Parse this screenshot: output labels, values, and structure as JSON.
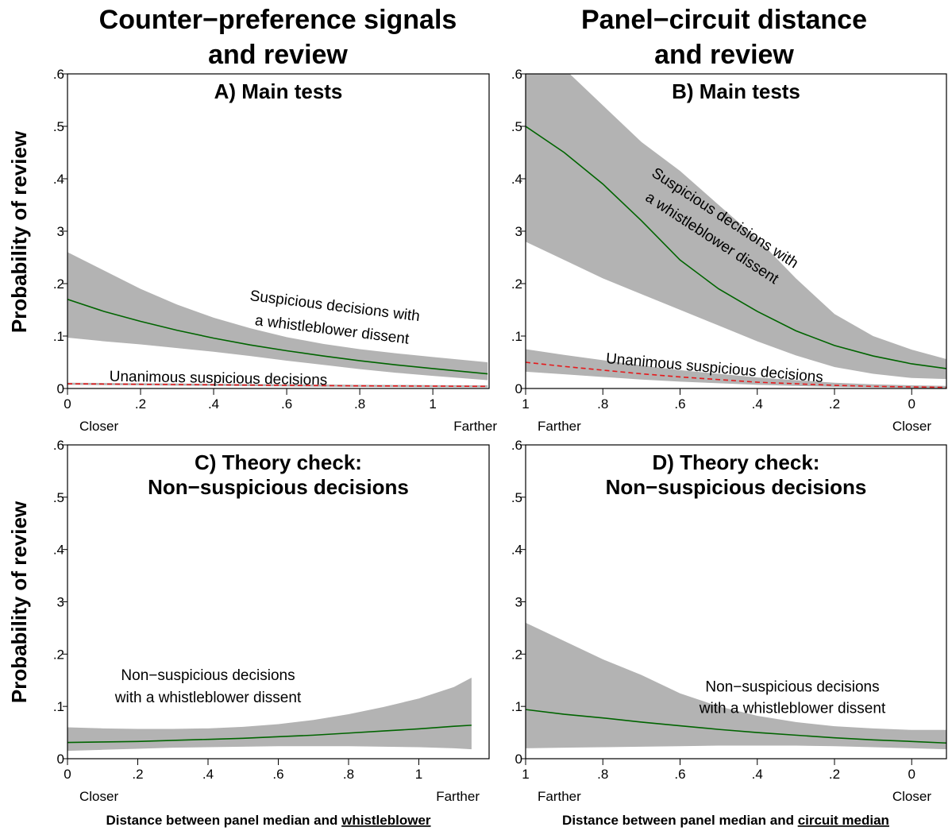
{
  "header": {
    "column_titles": [
      [
        "Counter−preference signals",
        "and review"
      ],
      [
        "Panel−circuit distance",
        "and review"
      ]
    ],
    "ylabel": "Probability of review",
    "xlabels": [
      {
        "prefix": "Distance between panel median and ",
        "underlined": "whistleblower"
      },
      {
        "prefix": "Distance between panel median and ",
        "underlined": "circuit median"
      }
    ]
  },
  "chart_data": [
    {
      "type": "line",
      "title": [
        "A) Main tests"
      ],
      "xlim": [
        0,
        1.154
      ],
      "xticks": [
        0,
        {
          "value": 0.2,
          "label": ".2"
        },
        {
          "value": 0.4,
          "label": ".4"
        },
        {
          "value": 0.6,
          "label": ".6"
        },
        {
          "value": 0.8,
          "label": ".8"
        },
        1
      ],
      "x_end_labels": [
        "Closer",
        "Farther"
      ],
      "ylim": [
        0,
        0.6
      ],
      "yticks": [
        0,
        {
          "value": 0.1,
          "label": ".1"
        },
        {
          "value": 0.2,
          "label": ".2"
        },
        {
          "value": 0.3,
          "label": "3"
        },
        {
          "value": 0.4,
          "label": ".4"
        },
        {
          "value": 0.5,
          "label": ".5"
        },
        {
          "value": 0.6,
          "label": ".6"
        }
      ],
      "band_color": "#b3b3b3",
      "x": [
        0,
        0.1,
        0.2,
        0.3,
        0.4,
        0.5,
        0.6,
        0.7,
        0.8,
        0.9,
        1.0,
        1.15
      ],
      "series": [
        {
          "color": "#006400",
          "dash": false,
          "values": [
            0.17,
            0.147,
            0.128,
            0.111,
            0.096,
            0.083,
            0.072,
            0.062,
            0.053,
            0.045,
            0.038,
            0.028
          ],
          "upper": [
            0.26,
            0.225,
            0.19,
            0.16,
            0.135,
            0.115,
            0.098,
            0.085,
            0.075,
            0.067,
            0.06,
            0.05
          ],
          "lower": [
            0.097,
            0.09,
            0.084,
            0.077,
            0.07,
            0.062,
            0.053,
            0.045,
            0.037,
            0.03,
            0.024,
            0.016
          ]
        },
        {
          "color": "#e41a1c",
          "dash": true,
          "values": [
            0.009,
            0.0085,
            0.008,
            0.0075,
            0.007,
            0.0065,
            0.006,
            0.0055,
            0.005,
            0.0048,
            0.0045,
            0.004
          ],
          "upper": [
            0.011,
            0.0105,
            0.01,
            0.0095,
            0.009,
            0.0085,
            0.008,
            0.0075,
            0.007,
            0.0068,
            0.0065,
            0.006
          ],
          "lower": [
            0.007,
            0.0065,
            0.006,
            0.0055,
            0.005,
            0.0045,
            0.004,
            0.0035,
            0.003,
            0.0028,
            0.0025,
            0.002
          ]
        }
      ],
      "annotations": [
        {
          "lines": [
            "Suspicious decisions with",
            "a whistleblower dissent"
          ]
        },
        {
          "lines": [
            "Unanimous suspicious decisions"
          ]
        }
      ]
    },
    {
      "type": "line",
      "title": [
        "B) Main tests"
      ],
      "xlim": [
        1,
        -0.09
      ],
      "xticks": [
        1,
        {
          "value": 0.8,
          "label": ".8"
        },
        {
          "value": 0.6,
          "label": ".6"
        },
        {
          "value": 0.4,
          "label": ".4"
        },
        {
          "value": 0.2,
          "label": ".2"
        },
        0
      ],
      "x_end_labels": [
        "Farther",
        "Closer"
      ],
      "ylim": [
        0,
        0.6
      ],
      "yticks": [
        0,
        {
          "value": 0.1,
          "label": ".1"
        },
        {
          "value": 0.2,
          "label": ".2"
        },
        {
          "value": 0.3,
          "label": "3"
        },
        {
          "value": 0.4,
          "label": ".4"
        },
        {
          "value": 0.5,
          "label": ".5"
        },
        {
          "value": 0.6,
          "label": ".6"
        }
      ],
      "band_color": "#b3b3b3",
      "x": [
        1,
        0.9,
        0.8,
        0.7,
        0.6,
        0.5,
        0.4,
        0.3,
        0.2,
        0.1,
        0,
        -0.09
      ],
      "series": [
        {
          "color": "#006400",
          "dash": false,
          "values": [
            0.5,
            0.45,
            0.39,
            0.32,
            0.245,
            0.19,
            0.147,
            0.11,
            0.082,
            0.062,
            0.047,
            0.038
          ],
          "upper": [
            0.7,
            0.61,
            0.54,
            0.47,
            0.415,
            0.35,
            0.286,
            0.21,
            0.142,
            0.1,
            0.074,
            0.056
          ],
          "lower": [
            0.28,
            0.245,
            0.21,
            0.18,
            0.15,
            0.12,
            0.09,
            0.063,
            0.041,
            0.028,
            0.02,
            0.018
          ]
        },
        {
          "color": "#e41a1c",
          "dash": true,
          "values": [
            0.05,
            0.042,
            0.035,
            0.028,
            0.022,
            0.017,
            0.012,
            0.009,
            0.006,
            0.004,
            0.003,
            0.002
          ],
          "upper": [
            0.075,
            0.064,
            0.054,
            0.044,
            0.035,
            0.028,
            0.021,
            0.016,
            0.011,
            0.008,
            0.006,
            0.005
          ],
          "lower": [
            0.032,
            0.027,
            0.022,
            0.017,
            0.013,
            0.01,
            0.007,
            0.005,
            0.003,
            0.002,
            0.001,
            0.001
          ]
        }
      ],
      "annotations": [
        {
          "lines": [
            "Suspicious decisions with",
            "a whistleblower dissent"
          ]
        },
        {
          "lines": [
            "Unanimous suspicious decisions"
          ]
        }
      ]
    },
    {
      "type": "line",
      "title": [
        "C) Theory check:",
        "Non−suspicious decisions"
      ],
      "xlim": [
        0,
        1.2
      ],
      "xticks": [
        0,
        {
          "value": 0.2,
          "label": ".2"
        },
        {
          "value": 0.4,
          "label": ".4"
        },
        {
          "value": 0.6,
          "label": ".6"
        },
        {
          "value": 0.8,
          "label": ".8"
        },
        1
      ],
      "x_end_labels": [
        "Closer",
        "Farther"
      ],
      "ylim": [
        0,
        0.6
      ],
      "yticks": [
        0,
        {
          "value": 0.1,
          "label": ".1"
        },
        {
          "value": 0.2,
          "label": ".2"
        },
        {
          "value": 0.3,
          "label": "3"
        },
        {
          "value": 0.4,
          "label": ".4"
        },
        {
          "value": 0.5,
          "label": ".5"
        },
        {
          "value": 0.6,
          "label": ".6"
        }
      ],
      "band_color": "#b3b3b3",
      "x": [
        0,
        0.1,
        0.2,
        0.3,
        0.4,
        0.5,
        0.6,
        0.7,
        0.8,
        0.9,
        1.0,
        1.1,
        1.15
      ],
      "series": [
        {
          "color": "#006400",
          "dash": false,
          "values": [
            0.031,
            0.032,
            0.033,
            0.035,
            0.037,
            0.039,
            0.042,
            0.045,
            0.049,
            0.053,
            0.057,
            0.062,
            0.064
          ],
          "upper": [
            0.06,
            0.058,
            0.057,
            0.057,
            0.058,
            0.061,
            0.066,
            0.074,
            0.085,
            0.099,
            0.115,
            0.137,
            0.155
          ],
          "lower": [
            0.015,
            0.017,
            0.019,
            0.021,
            0.022,
            0.023,
            0.024,
            0.024,
            0.024,
            0.023,
            0.022,
            0.02,
            0.018
          ]
        }
      ],
      "annotations": [
        {
          "lines": [
            "Non−suspicious decisions",
            "with a whistleblower dissent"
          ]
        }
      ]
    },
    {
      "type": "line",
      "title": [
        "D) Theory check:",
        "Non−suspicious decisions"
      ],
      "xlim": [
        1,
        -0.09
      ],
      "xticks": [
        1,
        {
          "value": 0.8,
          "label": ".8"
        },
        {
          "value": 0.6,
          "label": ".6"
        },
        {
          "value": 0.4,
          "label": ".4"
        },
        {
          "value": 0.2,
          "label": ".2"
        },
        0
      ],
      "x_end_labels": [
        "Farther",
        "Closer"
      ],
      "ylim": [
        0,
        0.6
      ],
      "yticks": [
        0,
        {
          "value": 0.1,
          "label": ".1"
        },
        {
          "value": 0.2,
          "label": ".2"
        },
        {
          "value": 0.3,
          "label": "3"
        },
        {
          "value": 0.4,
          "label": ".4"
        },
        {
          "value": 0.5,
          "label": ".5"
        },
        {
          "value": 0.6,
          "label": ".6"
        }
      ],
      "band_color": "#b3b3b3",
      "x": [
        1,
        0.9,
        0.8,
        0.7,
        0.6,
        0.5,
        0.4,
        0.3,
        0.2,
        0.1,
        0,
        -0.09
      ],
      "series": [
        {
          "color": "#006400",
          "dash": false,
          "values": [
            0.094,
            0.085,
            0.078,
            0.07,
            0.063,
            0.056,
            0.05,
            0.045,
            0.04,
            0.036,
            0.033,
            0.03
          ],
          "upper": [
            0.26,
            0.225,
            0.19,
            0.16,
            0.125,
            0.1,
            0.082,
            0.07,
            0.062,
            0.058,
            0.055,
            0.055
          ],
          "lower": [
            0.02,
            0.021,
            0.022,
            0.023,
            0.024,
            0.025,
            0.025,
            0.025,
            0.024,
            0.022,
            0.02,
            0.018
          ]
        }
      ],
      "annotations": [
        {
          "lines": [
            "Non−suspicious decisions",
            "with a whistleblower dissent"
          ]
        }
      ]
    }
  ]
}
